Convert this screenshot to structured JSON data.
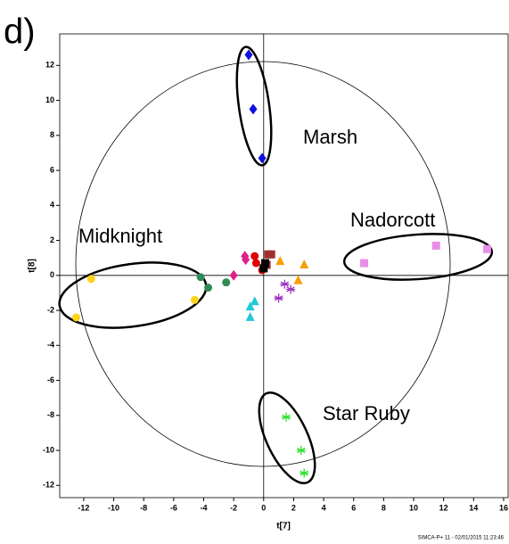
{
  "chart_data": {
    "type": "scatter",
    "panel_label": "d)",
    "xlabel": "t[7]",
    "ylabel": "t[8]",
    "footer": "SIMCA-P+ 11 - 02/01/2015 11:23:46",
    "annotations": [
      "Marsh",
      "Nadorcott",
      "Midknight",
      "Star Ruby"
    ],
    "xlim": [
      -13.6,
      16.3
    ],
    "ylim": [
      -12.7,
      13.8
    ],
    "xticks": [
      -12,
      -10,
      -8,
      -6,
      -4,
      -2,
      0,
      2,
      4,
      6,
      8,
      10,
      12,
      14,
      16
    ],
    "yticks": [
      -12,
      -10,
      -8,
      -6,
      -4,
      -2,
      0,
      2,
      4,
      6,
      8,
      10,
      12
    ],
    "series": [
      {
        "marker": "diamond",
        "color": "#1010e0",
        "x": [
          -1.0,
          -0.7,
          -0.1
        ],
        "values": [
          12.6,
          9.5,
          6.7
        ]
      },
      {
        "marker": "square",
        "color": "#e88ee8",
        "x": [
          6.7,
          11.5,
          14.9
        ],
        "values": [
          0.7,
          1.7,
          1.5
        ]
      },
      {
        "marker": "circle",
        "color": "#ffd21a",
        "x": [
          -11.5,
          -12.5,
          -4.6
        ],
        "values": [
          -0.2,
          -2.4,
          -1.4
        ]
      },
      {
        "marker": "circle",
        "color": "#2e8b57",
        "x": [
          -4.2,
          -3.7,
          -2.5
        ],
        "values": [
          -0.1,
          -0.7,
          -0.4
        ]
      },
      {
        "marker": "diamond",
        "color": "#e0208a",
        "x": [
          -1.25,
          -1.2,
          -2.0
        ],
        "values": [
          1.1,
          0.9,
          0.0
        ]
      },
      {
        "marker": "circle",
        "color": "#e00000",
        "x": [
          -0.6,
          -0.5,
          -0.1
        ],
        "values": [
          1.1,
          0.7,
          0.3
        ]
      },
      {
        "marker": "square",
        "color": "#a03030",
        "x": [
          0.3,
          0.5,
          0.2
        ],
        "values": [
          1.2,
          1.2,
          0.6
        ]
      },
      {
        "marker": "square",
        "color": "#000000",
        "x": [
          0.1,
          0.0
        ],
        "values": [
          0.7,
          0.4
        ]
      },
      {
        "marker": "triangle",
        "color": "#f5a000",
        "x": [
          1.1,
          2.7,
          2.3
        ],
        "values": [
          0.8,
          0.6,
          -0.3
        ]
      },
      {
        "marker": "asterisk",
        "color": "#9b30c0",
        "x": [
          1.4,
          1.8,
          1.0
        ],
        "values": [
          -0.5,
          -0.8,
          -1.3
        ]
      },
      {
        "marker": "triangle",
        "color": "#20c8d8",
        "x": [
          -0.6,
          -0.9,
          -0.9
        ],
        "values": [
          -1.5,
          -1.8,
          -2.4
        ]
      },
      {
        "marker": "asterisk",
        "color": "#30e030",
        "x": [
          1.5,
          2.5,
          2.7
        ],
        "values": [
          -8.1,
          -10.0,
          -11.3
        ]
      }
    ]
  }
}
